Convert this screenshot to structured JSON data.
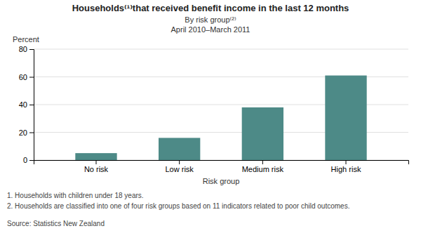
{
  "chart_data": {
    "type": "bar",
    "title": "Households⁽¹⁾that received benefit income in the last 12 months",
    "subtitle": [
      "By risk group⁽²⁾",
      "April 2010–March 2011"
    ],
    "xlabel": "Risk group",
    "ylabel": "Percent",
    "categories": [
      "No risk",
      "Low risk",
      "Medium risk",
      "High risk"
    ],
    "values": [
      5,
      16,
      38,
      61
    ],
    "color": "#4d8a87",
    "ylim": [
      0,
      80
    ],
    "yticks": [
      0,
      20,
      40,
      60,
      80
    ],
    "grid": true,
    "annotations": [
      "1. Households with children under 18 years.",
      "2. Households are classified into one of four risk groups based on 11 indicators related to poor child outcomes.",
      "Source: Statistics New Zealand"
    ]
  }
}
